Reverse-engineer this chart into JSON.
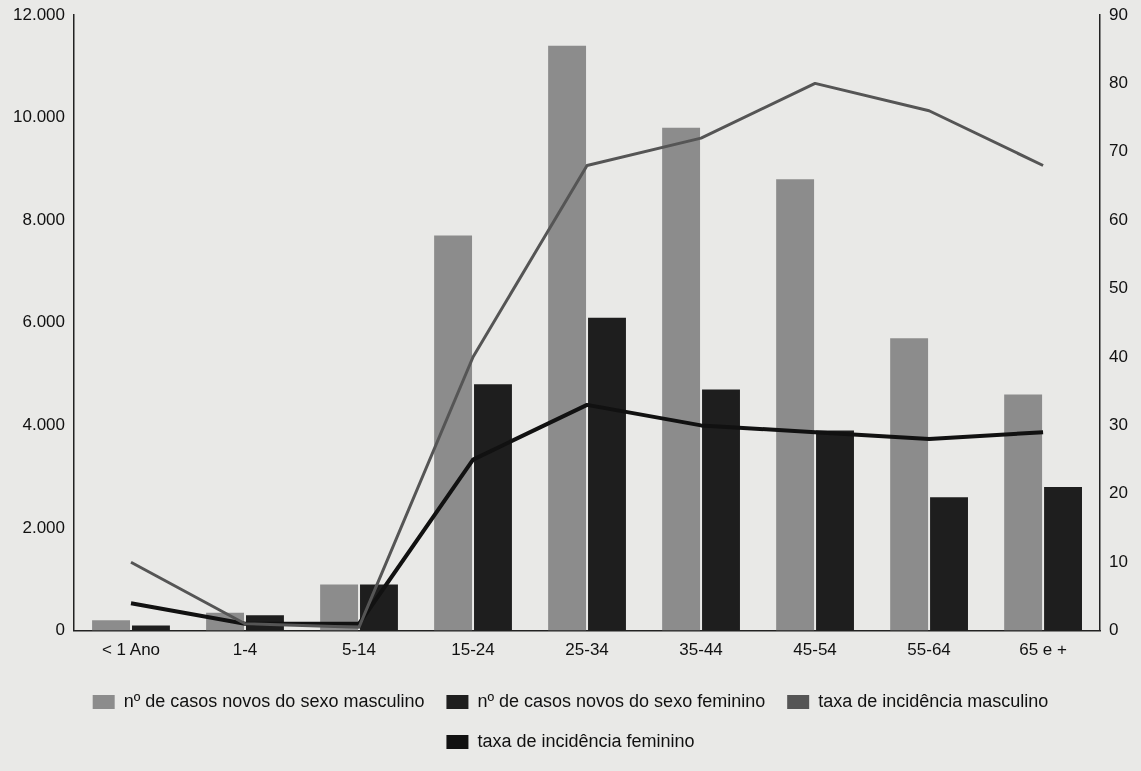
{
  "chart_data": {
    "type": "bar",
    "categories": [
      "< 1 Ano",
      "1-4",
      "5-14",
      "15-24",
      "25-34",
      "35-44",
      "45-54",
      "55-64",
      "65 e +"
    ],
    "series": [
      {
        "name": "nº de casos novos do sexo masculino",
        "color": "#8c8c8c",
        "values": [
          200,
          350,
          900,
          7700,
          11400,
          9800,
          8800,
          5700,
          4600
        ]
      },
      {
        "name": "nº de casos novos do sexo feminino",
        "color": "#1e1e1e",
        "values": [
          100,
          300,
          900,
          4800,
          6100,
          4700,
          3900,
          2600,
          2800
        ]
      },
      {
        "name": "taxa de incidência masculino",
        "type": "line",
        "axis": "y2",
        "color": "#555555",
        "values": [
          10,
          1,
          0.5,
          40,
          68,
          72,
          80,
          76,
          68
        ]
      },
      {
        "name": "taxa de incidência feminino",
        "type": "line",
        "axis": "y2",
        "color": "#111111",
        "values": [
          4,
          1,
          1,
          25,
          33,
          30,
          29,
          28,
          29
        ]
      }
    ],
    "ylim": [
      0,
      12000
    ],
    "yticks": [
      {
        "value": 0,
        "label": "0"
      },
      {
        "value": 2000,
        "label": "2.000"
      },
      {
        "value": 4000,
        "label": "4.000"
      },
      {
        "value": 6000,
        "label": "6.000"
      },
      {
        "value": 8000,
        "label": "8.000"
      },
      {
        "value": 10000,
        "label": "10.000"
      },
      {
        "value": 12000,
        "label": "12.000"
      }
    ],
    "y2lim": [
      0,
      90
    ],
    "y2ticks": [
      0,
      10,
      20,
      30,
      40,
      50,
      60,
      70,
      80,
      90
    ],
    "grid": false,
    "legend": "bottom",
    "marker": "none",
    "line_style": "solid"
  }
}
